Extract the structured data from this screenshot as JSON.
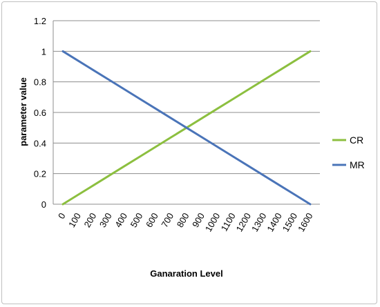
{
  "chart_data": {
    "type": "line",
    "xlabel": "Ganaration Level",
    "ylabel": "parameter value",
    "x": [
      0,
      100,
      200,
      300,
      400,
      500,
      600,
      700,
      800,
      900,
      1000,
      1100,
      1200,
      1300,
      1400,
      1500,
      1600
    ],
    "ylim": [
      0,
      1.2
    ],
    "yticks": [
      "0",
      "0.2",
      "0.4",
      "0.6",
      "0.8",
      "1",
      "1.2"
    ],
    "grid": true,
    "legend_position": "right",
    "series": [
      {
        "name": "CR",
        "color": "#8cbf3f",
        "values": [
          0,
          0.0625,
          0.125,
          0.1875,
          0.25,
          0.3125,
          0.375,
          0.4375,
          0.5,
          0.5625,
          0.625,
          0.6875,
          0.75,
          0.8125,
          0.875,
          0.9375,
          1
        ]
      },
      {
        "name": "MR",
        "color": "#4a74b8",
        "values": [
          1,
          0.9375,
          0.875,
          0.8125,
          0.75,
          0.6875,
          0.625,
          0.5625,
          0.5,
          0.4375,
          0.375,
          0.3125,
          0.25,
          0.1875,
          0.125,
          0.0625,
          0
        ]
      }
    ]
  }
}
